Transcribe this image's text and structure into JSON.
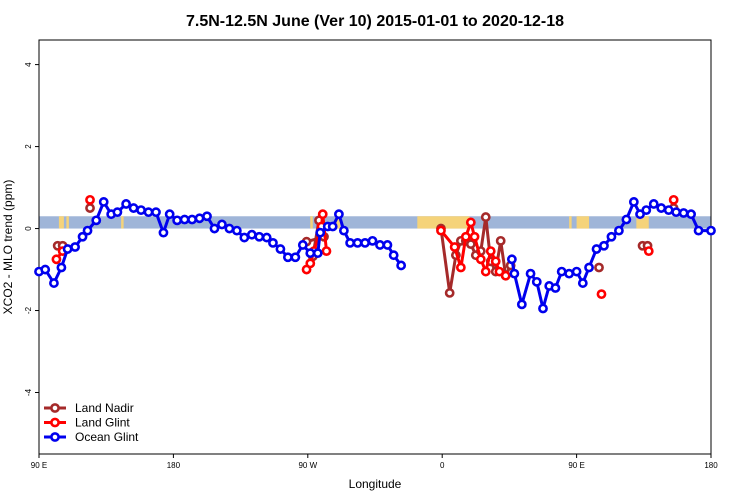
{
  "chart_data": {
    "type": "line",
    "title": "7.5N-12.5N June (Ver 10)   2015-01-01 to 2020-12-18",
    "xlabel": "Longitude",
    "ylabel": "XCO2 - MLO trend (ppm)",
    "xlim": [
      -90,
      180
    ],
    "ylim": [
      -5.5,
      4.6
    ],
    "x_ticks": [
      {
        "value": -90,
        "label": "90 E"
      },
      {
        "value": -36,
        "label": "180"
      },
      {
        "value": 18,
        "label": "90 W"
      },
      {
        "value": 72,
        "label": "0"
      },
      {
        "value": 126,
        "label": "90 E"
      },
      {
        "value": 180,
        "label": "180"
      }
    ],
    "y_ticks": [
      -4,
      -2,
      0,
      2,
      4
    ],
    "grid": false,
    "legend_position": "bottom-left",
    "band": {
      "y_min": 0.0,
      "y_max": 0.3,
      "color": "#9fb5d8",
      "land_color": "#f5d37a",
      "land_segments": [
        [
          -82,
          -80
        ],
        [
          -79,
          -78
        ],
        [
          -57,
          -56
        ],
        [
          19,
          20
        ],
        [
          29,
          31
        ],
        [
          62,
          83
        ],
        [
          123,
          124
        ],
        [
          126,
          131
        ],
        [
          150,
          155
        ]
      ]
    },
    "series": [
      {
        "name": "Land Nadir",
        "color": "#a52a2a",
        "segments": [
          [
            [
              -82.5,
              -0.42
            ],
            [
              -80.5,
              -0.42
            ]
          ],
          [
            [
              -69.5,
              0.5
            ]
          ],
          [
            [
              20,
              -0.68
            ],
            [
              22.5,
              0.2
            ],
            [
              24.5,
              -0.2
            ],
            [
              17.5,
              -0.32
            ]
          ],
          [
            [
              71.5,
              0
            ],
            [
              75.0,
              -1.57
            ],
            [
              77.5,
              -0.65
            ],
            [
              79.5,
              -0.3
            ],
            [
              81.5,
              -0.3
            ],
            [
              83.5,
              -0.38
            ],
            [
              85.5,
              -0.65
            ],
            [
              87.5,
              -0.55
            ],
            [
              89.5,
              0.28
            ],
            [
              91.5,
              -0.8
            ],
            [
              93.5,
              -1.05
            ],
            [
              95.5,
              -0.3
            ],
            [
              97.5,
              -1.15
            ],
            [
              99.5,
              -0.9
            ]
          ],
          [
            [
              135,
              -0.95
            ]
          ],
          [
            [
              152.5,
              -0.42
            ],
            [
              154.5,
              -0.42
            ]
          ],
          [
            [
              165,
              0.5
            ]
          ]
        ]
      },
      {
        "name": "Land Glint",
        "color": "#ff0000",
        "segments": [
          [
            [
              -83,
              -0.75
            ],
            [
              -80.5,
              -0.55
            ]
          ],
          [
            [
              -69.5,
              0.7
            ]
          ],
          [
            [
              17.5,
              -1
            ],
            [
              19,
              -0.85
            ],
            [
              20.5,
              -0.55
            ],
            [
              23.5,
              0.05
            ],
            [
              24,
              0.35
            ],
            [
              25.5,
              -0.55
            ]
          ],
          [
            [
              71.5,
              -0.05
            ],
            [
              77,
              -0.45
            ],
            [
              79.5,
              -0.95
            ],
            [
              81.5,
              -0.2
            ],
            [
              83.5,
              0.15
            ],
            [
              85,
              -0.2
            ],
            [
              87.5,
              -0.75
            ],
            [
              89.5,
              -1.05
            ],
            [
              91.5,
              -0.55
            ],
            [
              93.5,
              -0.8
            ],
            [
              95,
              -1.05
            ],
            [
              97.5,
              -1.15
            ]
          ],
          [
            [
              136,
              -1.6
            ]
          ],
          [
            [
              155,
              -0.55
            ]
          ],
          [
            [
              165,
              0.7
            ]
          ]
        ]
      },
      {
        "name": "Ocean Glint",
        "color": "#0000ee",
        "segments": [
          [
            [
              -90,
              -1.05
            ],
            [
              -87.5,
              -1.0
            ],
            [
              -84,
              -1.33
            ],
            [
              -81,
              -0.95
            ],
            [
              -78.5,
              -0.5
            ],
            [
              -75.5,
              -0.45
            ],
            [
              -72.5,
              -0.2
            ],
            [
              -70.5,
              -0.05
            ],
            [
              -67,
              0.2
            ],
            [
              -64,
              0.65
            ],
            [
              -61,
              0.35
            ],
            [
              -58.5,
              0.4
            ],
            [
              -55,
              0.6
            ],
            [
              -52,
              0.5
            ],
            [
              -49,
              0.45
            ],
            [
              -46,
              0.4
            ],
            [
              -43,
              0.4
            ],
            [
              -40,
              -0.1
            ],
            [
              -37.5,
              0.35
            ],
            [
              -34.5,
              0.2
            ],
            [
              -31.5,
              0.22
            ],
            [
              -28.5,
              0.22
            ],
            [
              -25.5,
              0.25
            ],
            [
              -22.5,
              0.3
            ],
            [
              -19.5,
              0.0
            ],
            [
              -16.5,
              0.1
            ],
            [
              -13.5,
              0.0
            ],
            [
              -10.5,
              -0.05
            ],
            [
              -7.5,
              -0.22
            ],
            [
              -4.5,
              -0.15
            ],
            [
              -1.5,
              -0.2
            ],
            [
              1.5,
              -0.22
            ],
            [
              4,
              -0.35
            ],
            [
              7,
              -0.5
            ],
            [
              10,
              -0.7
            ],
            [
              13,
              -0.7
            ],
            [
              16,
              -0.4
            ],
            [
              19,
              -0.6
            ],
            [
              22,
              -0.6
            ],
            [
              23,
              -0.1
            ],
            [
              26,
              0.05
            ],
            [
              28,
              0.05
            ],
            [
              30.5,
              0.35
            ],
            [
              32.5,
              -0.05
            ],
            [
              35,
              -0.35
            ],
            [
              38,
              -0.35
            ],
            [
              41,
              -0.35
            ],
            [
              44,
              -0.3
            ],
            [
              47,
              -0.4
            ],
            [
              50,
              -0.4
            ],
            [
              52.5,
              -0.65
            ],
            [
              55.5,
              -0.9
            ]
          ],
          [
            [
              100,
              -0.75
            ],
            [
              101,
              -1.1
            ],
            [
              104,
              -1.85
            ],
            [
              107.5,
              -1.1
            ],
            [
              110,
              -1.3
            ],
            [
              112.5,
              -1.95
            ],
            [
              115,
              -1.4
            ],
            [
              117.5,
              -1.45
            ],
            [
              120,
              -1.05
            ],
            [
              123,
              -1.1
            ],
            [
              126,
              -1.05
            ],
            [
              128.5,
              -1.33
            ],
            [
              131,
              -0.95
            ],
            [
              134,
              -0.5
            ],
            [
              137,
              -0.42
            ],
            [
              140,
              -0.2
            ],
            [
              143,
              -0.05
            ],
            [
              146,
              0.22
            ],
            [
              149,
              0.65
            ],
            [
              151.5,
              0.35
            ],
            [
              154,
              0.45
            ],
            [
              157,
              0.6
            ],
            [
              160,
              0.5
            ],
            [
              163,
              0.45
            ],
            [
              166,
              0.4
            ],
            [
              169,
              0.38
            ],
            [
              172,
              0.35
            ],
            [
              175,
              -0.05
            ],
            [
              180,
              -0.05
            ]
          ]
        ]
      }
    ]
  }
}
